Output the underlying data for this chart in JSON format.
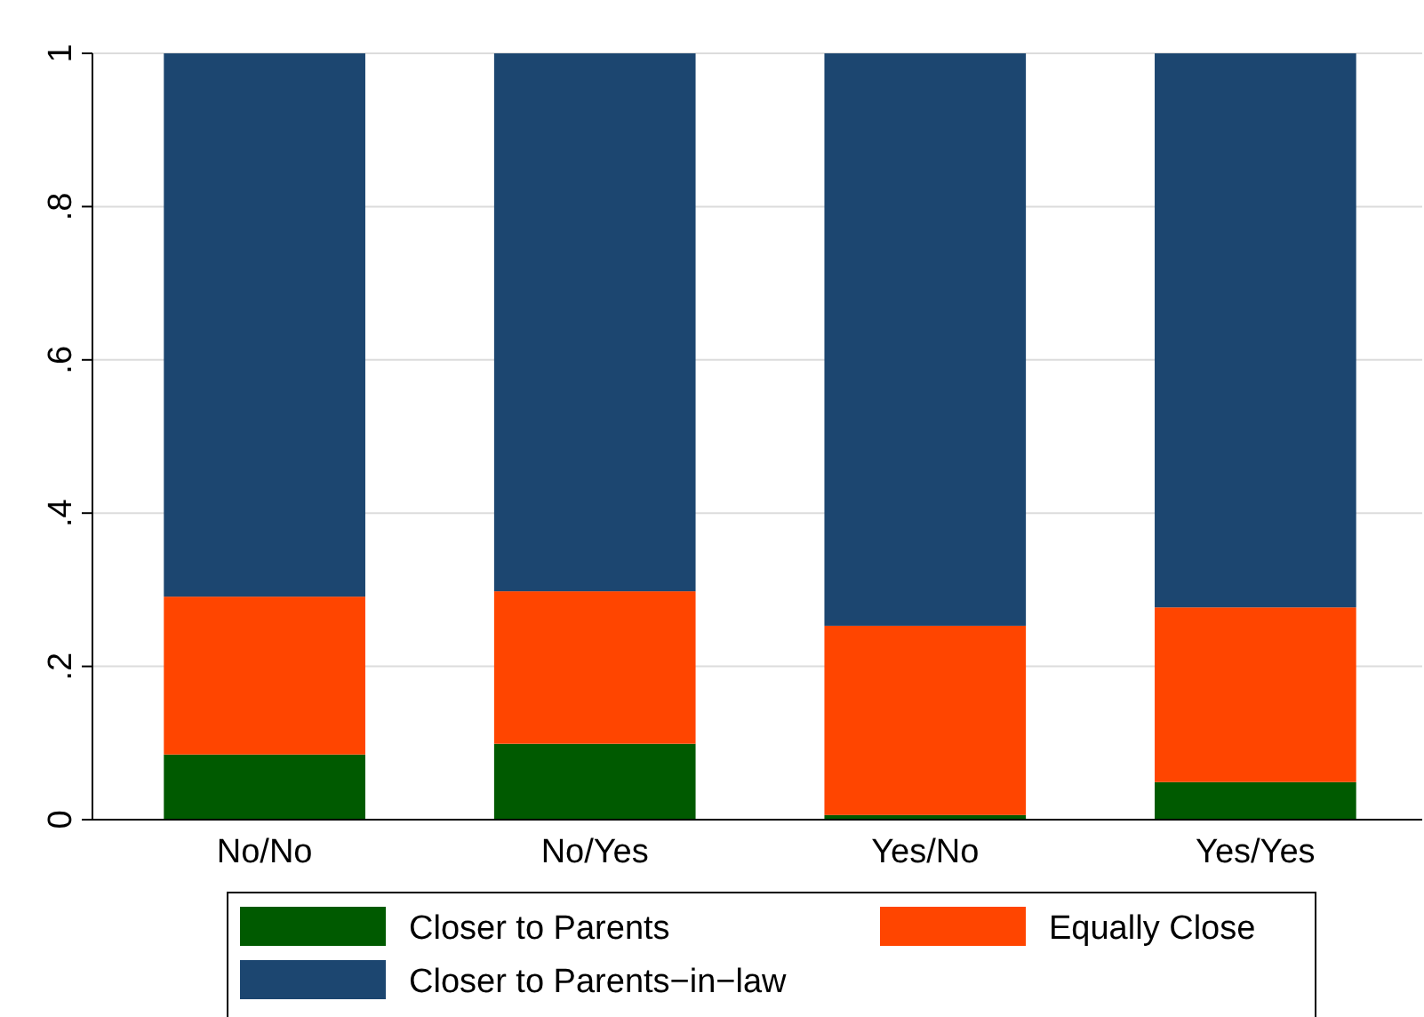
{
  "chart_data": {
    "type": "bar",
    "stacked": true,
    "categories": [
      "No/No",
      "No/Yes",
      "Yes/No",
      "Yes/Yes"
    ],
    "series": [
      {
        "name": "Closer to Parents",
        "color": "#005a00",
        "values": [
          0.085,
          0.099,
          0.006,
          0.049
        ]
      },
      {
        "name": "Equally Close",
        "color": "#ff4500",
        "values": [
          0.206,
          0.199,
          0.247,
          0.228
        ]
      },
      {
        "name": "Closer to Parents−in−law",
        "color": "#1c4670",
        "values": [
          0.709,
          0.702,
          0.747,
          0.723
        ]
      }
    ],
    "ylim": [
      0,
      1
    ],
    "yticks": [
      {
        "value": 0,
        "label": "0"
      },
      {
        "value": 0.2,
        "label": ".2"
      },
      {
        "value": 0.4,
        "label": ".4"
      },
      {
        "value": 0.6,
        "label": ".6"
      },
      {
        "value": 0.8,
        "label": ".8"
      },
      {
        "value": 1,
        "label": "1"
      }
    ],
    "grid": "y",
    "legend": "bottom"
  }
}
